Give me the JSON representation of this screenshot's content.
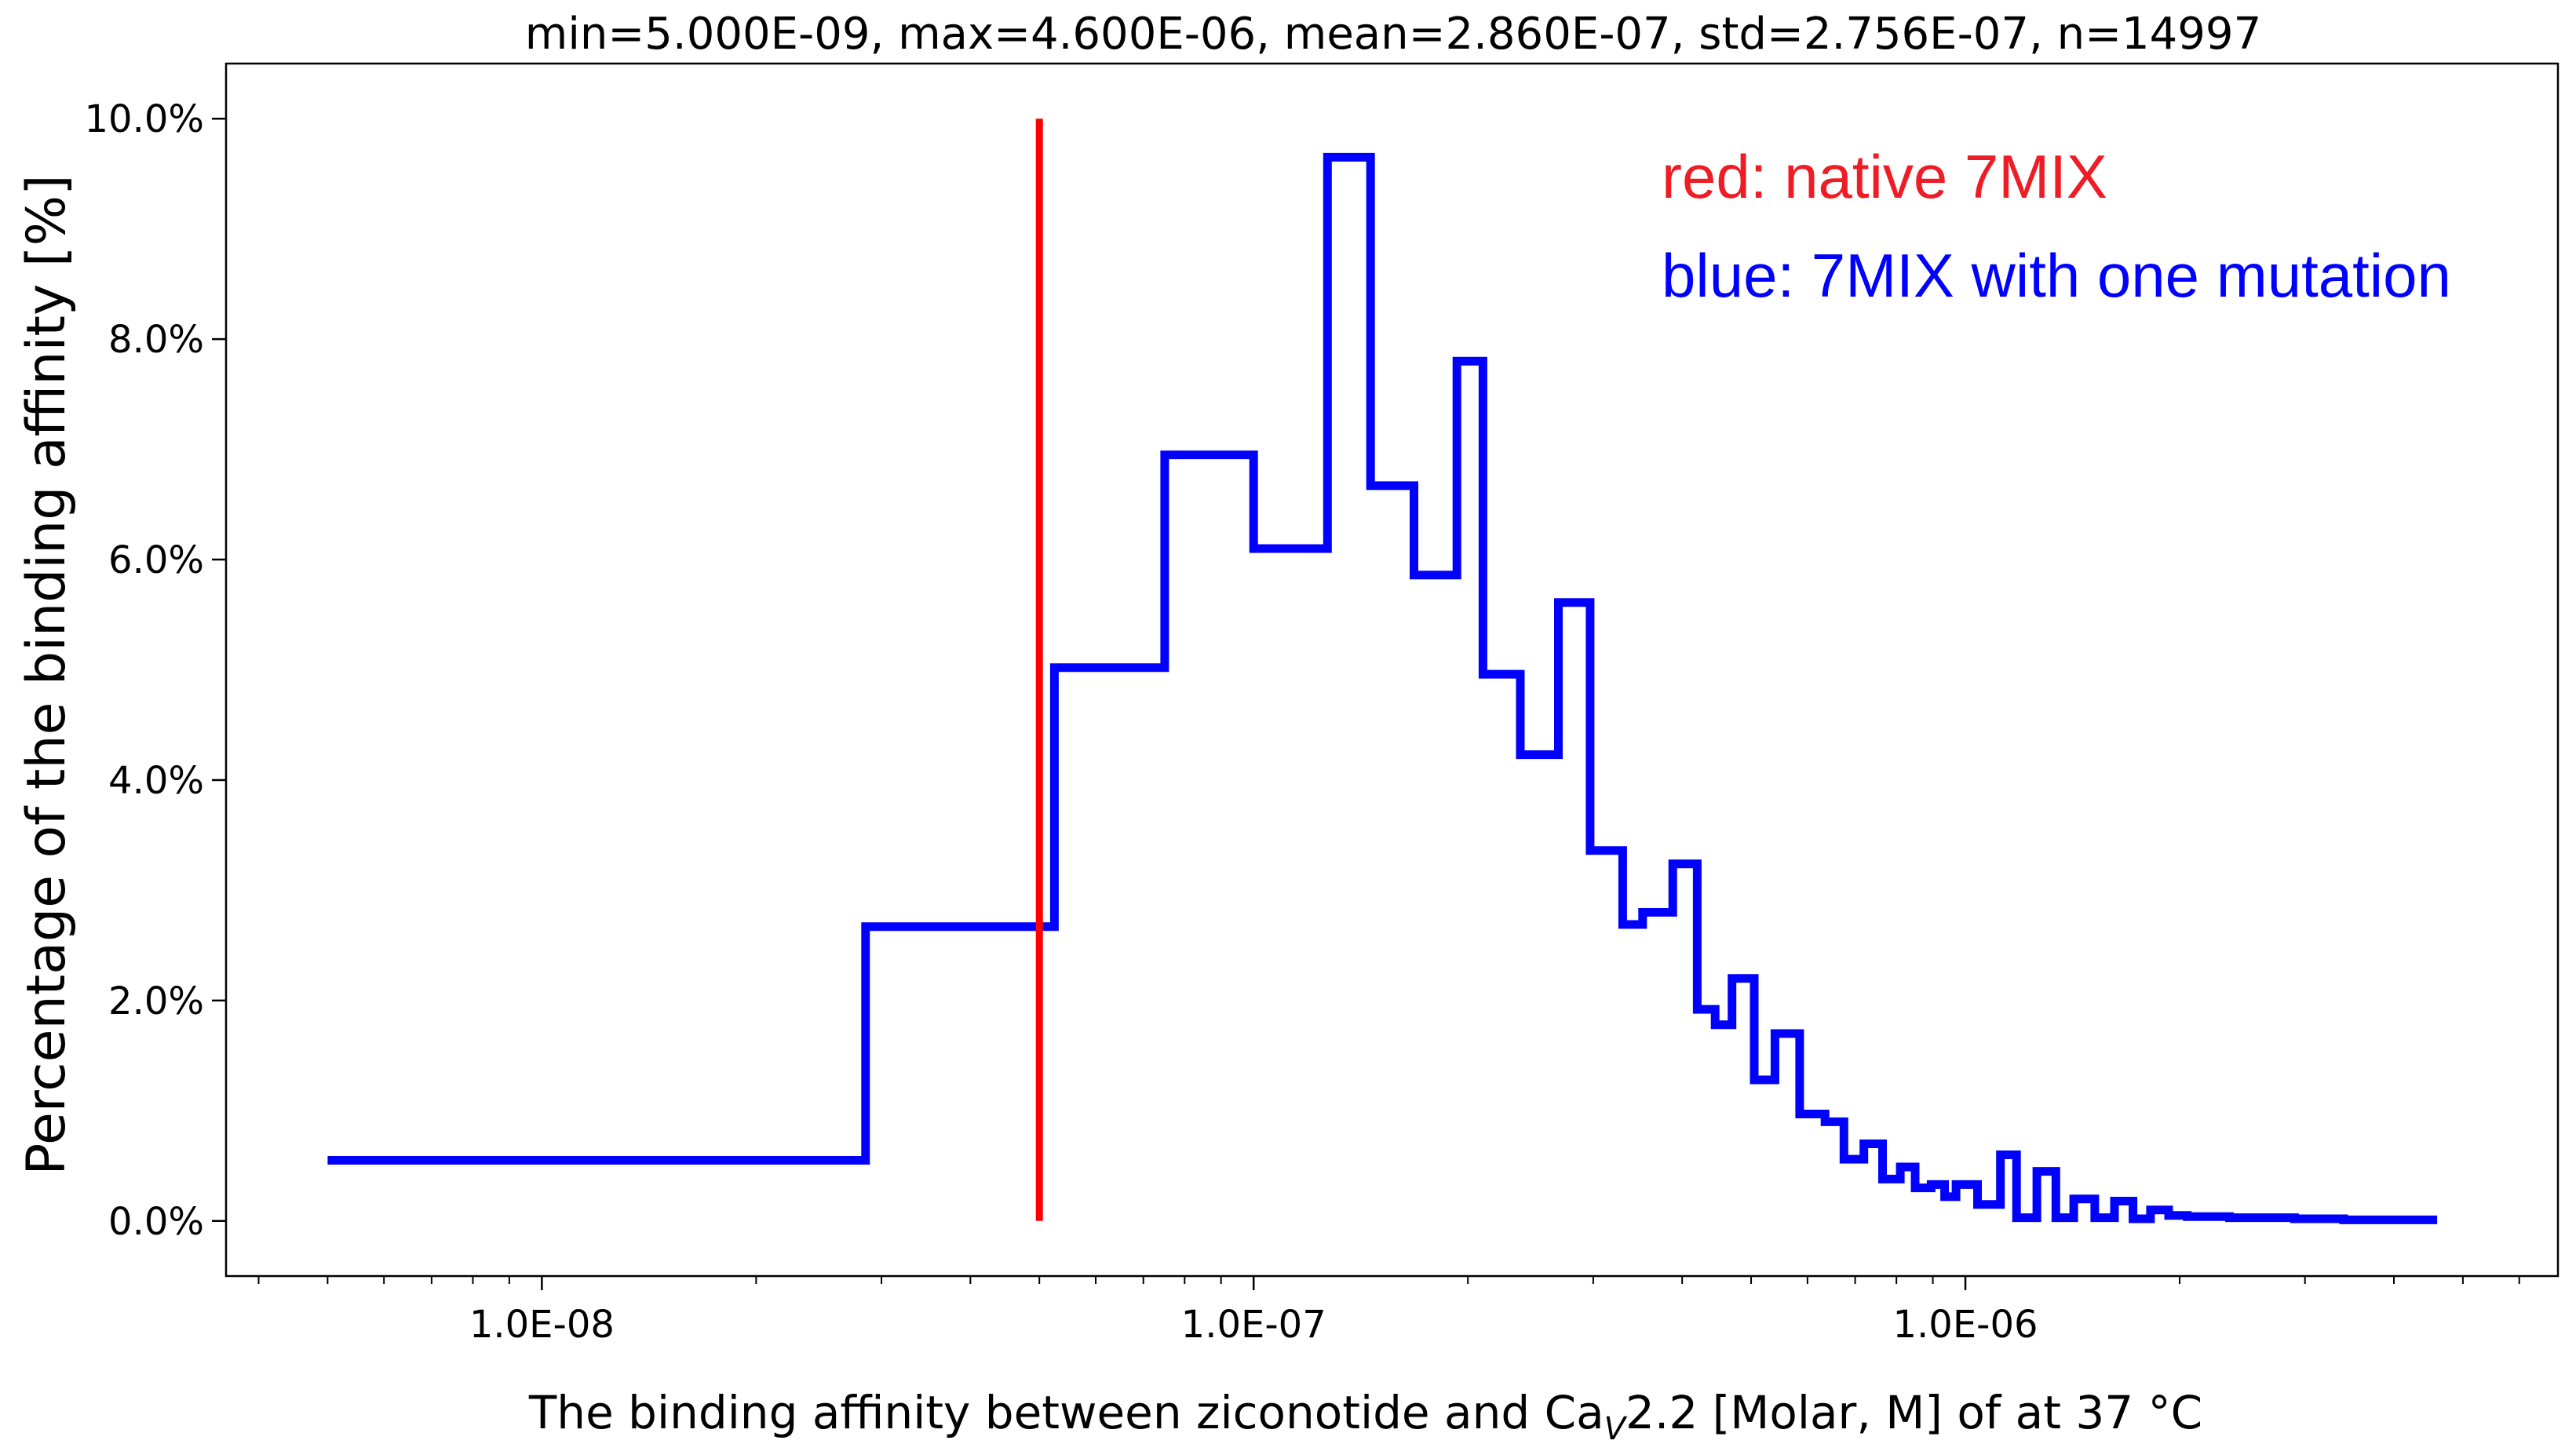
{
  "chart_data": {
    "type": "line",
    "title": "min=5.000E-09, max=4.600E-06, mean=2.860E-07, std=2.756E-07, n=14997",
    "xlabel_main": "The binding affinity between ziconotide and Ca",
    "xlabel_sub": "V",
    "xlabel_tail": "2.2 [Molar, M] of at 37 °C",
    "ylabel": "Percentage of the binding affinity [%]",
    "x_scale": "log",
    "xlim": [
      3.6e-09,
      6.8e-06
    ],
    "ylim": [
      -0.5,
      10.5
    ],
    "x_ticks": [
      {
        "value": 1e-08,
        "label": "1.0E-08"
      },
      {
        "value": 1e-07,
        "label": "1.0E-07"
      },
      {
        "value": 1e-06,
        "label": "1.0E-06"
      }
    ],
    "y_ticks": [
      {
        "value": 0,
        "label": "0.0%"
      },
      {
        "value": 2,
        "label": "2.0%"
      },
      {
        "value": 4,
        "label": "4.0%"
      },
      {
        "value": 6,
        "label": "6.0%"
      },
      {
        "value": 8,
        "label": "8.0%"
      },
      {
        "value": 10,
        "label": "10.0%"
      }
    ],
    "grid": false,
    "series": [
      {
        "name": "blue: 7MIX with one mutation",
        "color": "#0000ff",
        "drawstyle": "steps-post",
        "x": [
          5e-09,
          2.85e-08,
          5.25e-08,
          7.5e-08,
          1e-07,
          1.27e-07,
          1.46e-07,
          1.68e-07,
          1.93e-07,
          2.1e-07,
          2.37e-07,
          2.68e-07,
          2.97e-07,
          3.3e-07,
          3.52e-07,
          3.88e-07,
          4.2e-07,
          4.45e-07,
          4.7e-07,
          5.05e-07,
          5.4e-07,
          5.85e-07,
          6.35e-07,
          6.75e-07,
          7.2e-07,
          7.65e-07,
          8.1e-07,
          8.5e-07,
          8.95e-07,
          9.35e-07,
          9.7e-07,
          1.04e-06,
          1.12e-06,
          1.18e-06,
          1.26e-06,
          1.34e-06,
          1.42e-06,
          1.52e-06,
          1.62e-06,
          1.72e-06,
          1.82e-06,
          1.93e-06,
          2.05e-06,
          2.2e-06,
          2.35e-06,
          2.5e-06,
          2.7e-06,
          2.9e-06,
          3.1e-06,
          3.4e-06,
          4.6e-06
        ],
        "y": [
          0.55,
          2.67,
          5.02,
          6.95,
          6.1,
          9.65,
          6.67,
          5.86,
          7.8,
          4.96,
          4.23,
          5.61,
          3.36,
          2.69,
          2.8,
          3.24,
          1.92,
          1.78,
          2.2,
          1.28,
          1.7,
          0.97,
          0.9,
          0.56,
          0.7,
          0.38,
          0.49,
          0.3,
          0.33,
          0.22,
          0.33,
          0.15,
          0.6,
          0.03,
          0.45,
          0.03,
          0.2,
          0.03,
          0.18,
          0.02,
          0.1,
          0.05,
          0.04,
          0.04,
          0.03,
          0.03,
          0.03,
          0.02,
          0.02,
          0.01,
          0.01
        ]
      },
      {
        "name": "red: native 7MIX",
        "color": "#ff0000",
        "type": "vline",
        "x": 5e-08,
        "y_range": [
          0,
          10
        ]
      }
    ],
    "annotations": [
      {
        "text": "red: native 7MIX",
        "color": "#ee1c24"
      },
      {
        "text": "blue: 7MIX with one mutation",
        "color": "#0000ff"
      }
    ]
  }
}
